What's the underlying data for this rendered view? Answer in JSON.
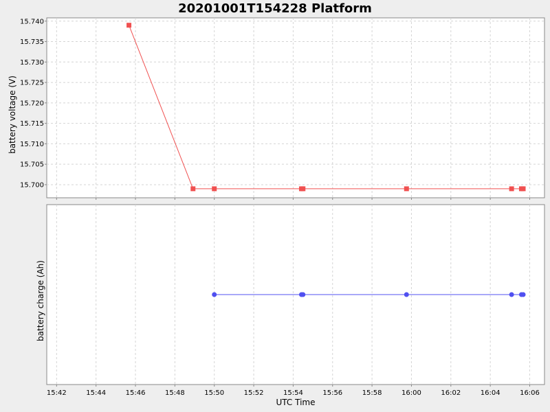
{
  "title": "20201001T154228 Platform",
  "chart_data": {
    "type": "line",
    "title": "20201001T154228 Platform",
    "xlabel": "UTC Time",
    "x_ticks": [
      "15:42",
      "15:44",
      "15:46",
      "15:48",
      "15:50",
      "15:52",
      "15:54",
      "15:56",
      "15:58",
      "16:00",
      "16:02",
      "16:04",
      "16:06"
    ],
    "xlim": [
      "15:41.5",
      "16:06.75"
    ],
    "grid": true,
    "panels": [
      {
        "ylabel": "battery voltage (V)",
        "ylim": [
          15.6968,
          15.7408
        ],
        "y_ticks": [
          "15.700",
          "15.705",
          "15.710",
          "15.715",
          "15.720",
          "15.725",
          "15.730",
          "15.735",
          "15.740"
        ],
        "y_tick_values": [
          15.7,
          15.705,
          15.71,
          15.715,
          15.72,
          15.725,
          15.73,
          15.735,
          15.74
        ],
        "series": [
          {
            "color": "#f05050",
            "marker": "square",
            "x": [
              "15:45.67",
              "15:48.92",
              "15:50.00",
              "15:54.42",
              "15:54.50",
              "15:59.75",
              "16:05.08",
              "16:05.58",
              "16:05.67"
            ],
            "y": [
              15.739,
              15.699,
              15.699,
              15.699,
              15.699,
              15.699,
              15.699,
              15.699,
              15.699
            ]
          }
        ]
      },
      {
        "ylabel": "battery charge (Ah)",
        "y_ticks": [],
        "series": [
          {
            "color": "#5050f0",
            "marker": "circle",
            "x": [
              "15:50.00",
              "15:54.42",
              "15:54.50",
              "15:59.75",
              "16:05.08",
              "16:05.58",
              "16:05.67"
            ],
            "y": [
              0,
              0,
              0,
              0,
              0,
              0,
              0
            ]
          }
        ]
      }
    ]
  }
}
